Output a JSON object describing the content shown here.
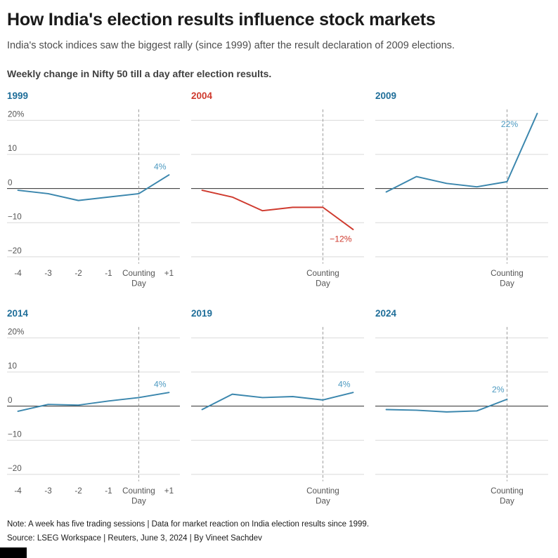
{
  "header": {
    "title": "How India's election results influence stock markets",
    "subtitle": "India's stock indices saw the biggest rally (since 1999) after the result declaration of 2009 elections.",
    "caption": "Weekly change in Nifty 50 till a day after election results."
  },
  "colors": {
    "blue_line": "#3a86ad",
    "blue_year": "#1f6e99",
    "blue_end_label": "#4d9ac1",
    "red": "#cf3a2e",
    "grid": "#d9d9d9",
    "zero_line": "#2b2b2b",
    "dashed_line": "#999999",
    "tick_label": "#555555"
  },
  "chart_data": {
    "type": "line",
    "unit": "%",
    "x_categories": [
      "-4",
      "-3",
      "-2",
      "-1",
      "Counting Day",
      "+1"
    ],
    "ylim": [
      -24,
      24
    ],
    "yticks": [
      20,
      10,
      0,
      -10,
      -20
    ],
    "ytick_labels": [
      "20%",
      "10",
      "0",
      "−10",
      "−20"
    ],
    "counting_day_index": 4,
    "panels": [
      {
        "year": "1999",
        "variant": "blue",
        "values": [
          -0.5,
          -1.5,
          -3.5,
          -2.5,
          -1.5,
          4
        ],
        "end_label": "4%",
        "end_dx": -4,
        "end_dy": -8,
        "show_y_labels": true,
        "show_all_x_labels": true
      },
      {
        "year": "2004",
        "variant": "red",
        "values": [
          -0.5,
          -2.5,
          -6.5,
          -5.5,
          -5.5,
          -12
        ],
        "end_label": "−12%",
        "end_dx": -2,
        "end_dy": 18,
        "show_y_labels": false,
        "show_all_x_labels": false
      },
      {
        "year": "2009",
        "variant": "blue",
        "values": [
          -1,
          3.5,
          1.5,
          0.5,
          2,
          22
        ],
        "end_label": "22%",
        "end_dx": -28,
        "end_dy": 20,
        "show_y_labels": false,
        "show_all_x_labels": false
      },
      {
        "year": "2014",
        "variant": "blue",
        "values": [
          -1.5,
          0.5,
          0.3,
          1.5,
          2.5,
          4
        ],
        "end_label": "4%",
        "end_dx": -4,
        "end_dy": -8,
        "show_y_labels": true,
        "show_all_x_labels": true
      },
      {
        "year": "2019",
        "variant": "blue",
        "values": [
          -1,
          3.5,
          2.5,
          2.8,
          1.8,
          4
        ],
        "end_label": "4%",
        "end_dx": -4,
        "end_dy": -8,
        "show_y_labels": false,
        "show_all_x_labels": false
      },
      {
        "year": "2024",
        "variant": "blue",
        "values": [
          -1,
          -1.2,
          -1.7,
          -1.4,
          2,
          null
        ],
        "end_label": "2%",
        "end_dx": -4,
        "end_dy": -10,
        "show_y_labels": false,
        "show_all_x_labels": false
      }
    ]
  },
  "footer": {
    "note": "Note: A week has five trading sessions | Data for market reaction on India election results since 1999.",
    "source": "Source: LSEG Workspace | Reuters, June 3, 2024 | By Vineet Sachdev"
  }
}
